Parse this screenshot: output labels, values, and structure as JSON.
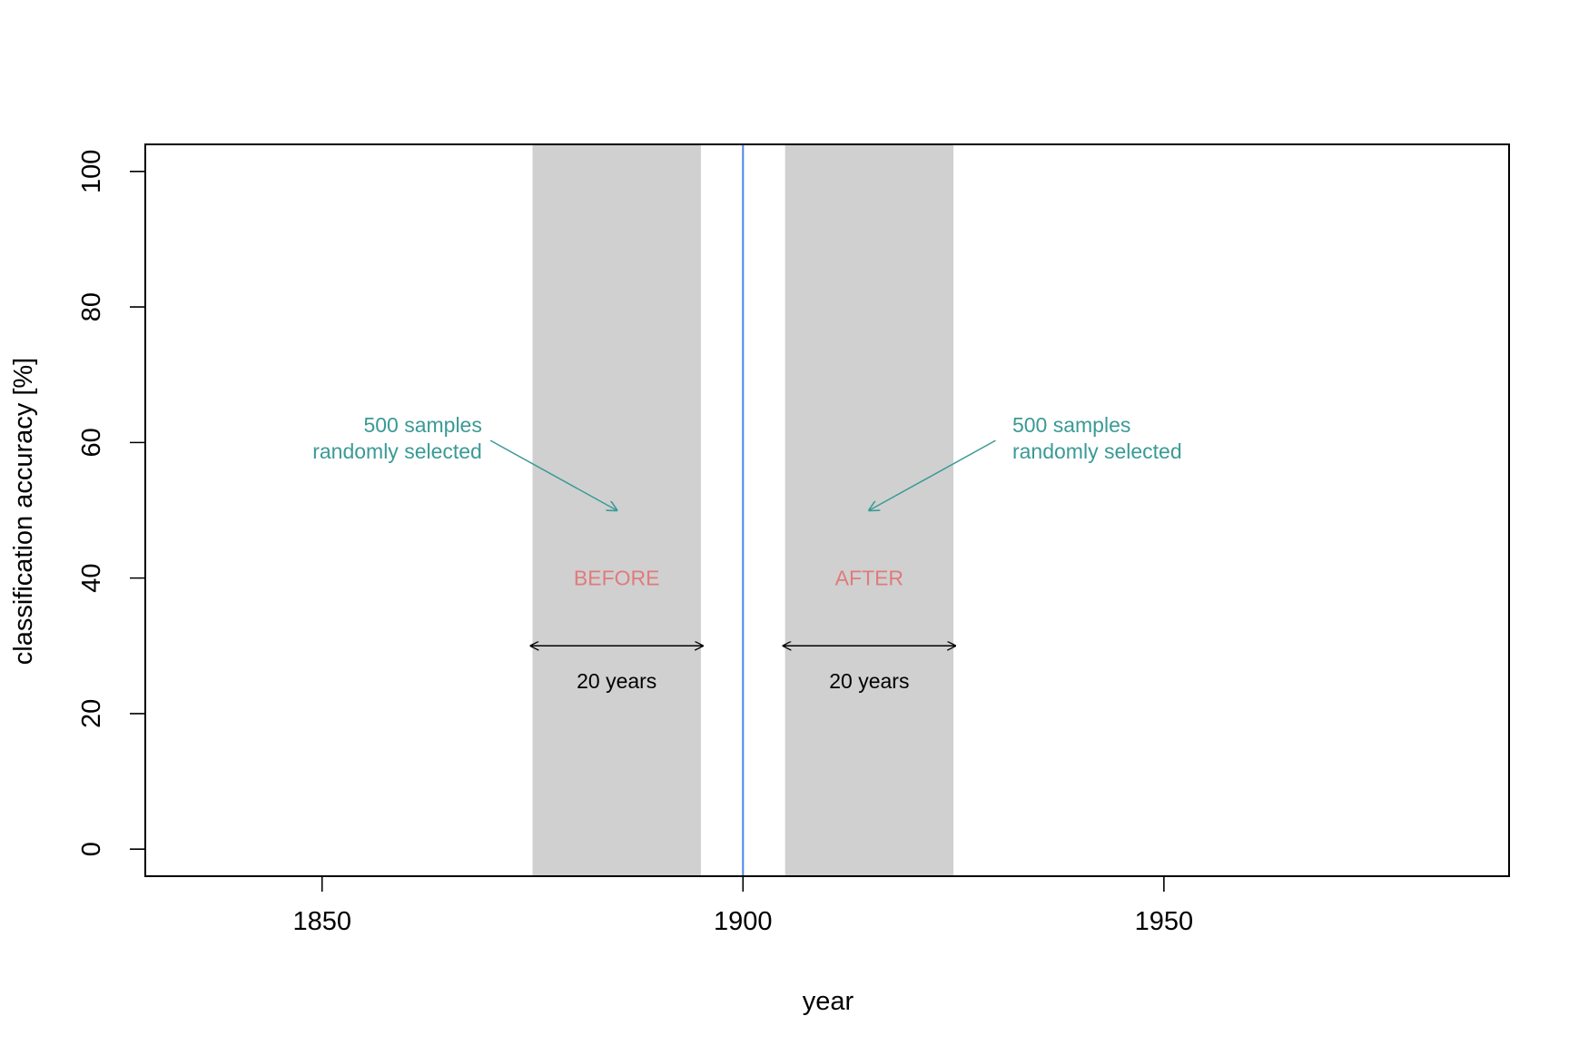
{
  "chart_data": {
    "type": "area",
    "xlabel": "year",
    "ylabel": "classification accuracy [%]",
    "xlim": [
      1829,
      1991
    ],
    "ylim": [
      -4,
      104
    ],
    "x_ticks": [
      1850,
      1900,
      1950
    ],
    "y_ticks": [
      0,
      20,
      40,
      60,
      80,
      100
    ],
    "x_tick_labels": [
      "1850",
      "1900",
      "1950"
    ],
    "y_tick_labels": [
      "0",
      "20",
      "40",
      "60",
      "80",
      "100"
    ],
    "grid": false,
    "reference_line": {
      "x": 1900,
      "color": "#4a86e8"
    },
    "regions": [
      {
        "label": "BEFORE",
        "x_start": 1875,
        "x_end": 1895,
        "color": "#d0d0d0"
      },
      {
        "label": "AFTER",
        "x_start": 1905,
        "x_end": 1925,
        "color": "#d0d0d0"
      }
    ],
    "span_arrows": [
      {
        "x_start": 1875,
        "x_end": 1895,
        "y": 30,
        "label": "20 years"
      },
      {
        "x_start": 1905,
        "x_end": 1925,
        "y": 30,
        "label": "20 years"
      }
    ],
    "annotations": [
      {
        "lines": [
          "500 samples",
          "randomly selected"
        ],
        "align": "right",
        "text_x": 1869,
        "text_y": 61.5,
        "arrow_from": [
          1870,
          60.3
        ],
        "arrow_to": [
          1885,
          50
        ]
      },
      {
        "lines": [
          "500 samples",
          "randomly selected"
        ],
        "align": "left",
        "text_x": 1932,
        "text_y": 61.5,
        "arrow_from": [
          1930,
          60.3
        ],
        "arrow_to": [
          1915,
          50
        ]
      }
    ],
    "region_label_y": 40,
    "span_label_y": 24.8,
    "colors": {
      "annotation": "#3a9a96",
      "region_label": "#e07b7b",
      "axis": "#000000"
    }
  }
}
